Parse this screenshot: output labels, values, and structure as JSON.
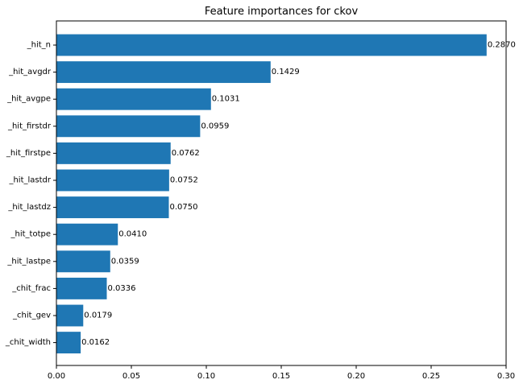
{
  "chart_data": {
    "type": "bar",
    "orientation": "horizontal",
    "title": "Feature importances for ckov",
    "xlabel": "",
    "ylabel": "",
    "categories": [
      "_hit_n",
      "_hit_avgdr",
      "_hit_avgpe",
      "_hit_firstdr",
      "_hit_firstpe",
      "_hit_lastdr",
      "_hit_lastdz",
      "_hit_totpe",
      "_hit_lastpe",
      "_chit_frac",
      "_chit_gev",
      "_chit_width"
    ],
    "values": [
      0.287,
      0.1429,
      0.1031,
      0.0959,
      0.0762,
      0.0752,
      0.075,
      0.041,
      0.0359,
      0.0336,
      0.0179,
      0.0162
    ],
    "value_labels": [
      "0.2870",
      "0.1429",
      "0.1031",
      "0.0959",
      "0.0762",
      "0.0752",
      "0.0750",
      "0.0410",
      "0.0359",
      "0.0336",
      "0.0179",
      "0.0162"
    ],
    "xlim": [
      0,
      0.3
    ],
    "xticks": [
      0.0,
      0.05,
      0.1,
      0.15,
      0.2,
      0.25,
      0.3
    ],
    "xtick_labels": [
      "0.00",
      "0.05",
      "0.10",
      "0.15",
      "0.20",
      "0.25",
      "0.30"
    ],
    "grid": false,
    "legend": "none",
    "bar_color": "#1f77b4"
  }
}
